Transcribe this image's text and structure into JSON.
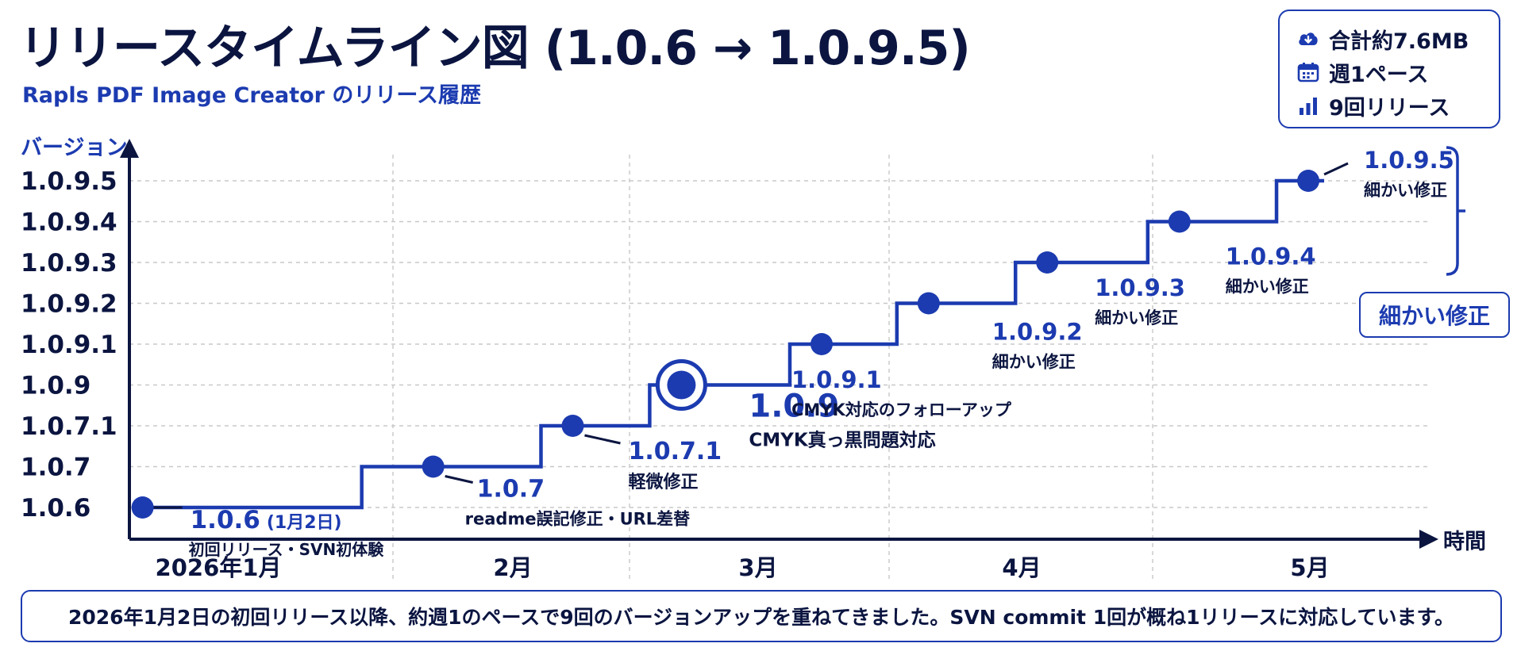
{
  "title": "リリースタイムライン図 (1.0.6 → 1.0.9.5)",
  "subtitle": "Rapls PDF Image Creator のリリース履歴",
  "summary_box": {
    "items": [
      {
        "icon": "cloud-download-icon",
        "label": "合計約7.6MB"
      },
      {
        "icon": "calendar-icon",
        "label": "週1ペース"
      },
      {
        "icon": "bar-chart-icon",
        "label": "9回リリース"
      }
    ]
  },
  "callout_label": "細かい修正",
  "footer_note": "2026年1月2日の初回リリース以降、約週1のペースで9回のバージョンアップを重ねてきました。SVN commit 1回が概ね1リリースに対応しています。",
  "colors": {
    "accent": "#1c3bb0",
    "text": "#0b1540",
    "grid": "#c8c8c8"
  },
  "chart_data": {
    "type": "line",
    "step": true,
    "ylabel": "バージョン",
    "xlabel": "時間",
    "y_categories": [
      "1.0.6",
      "1.0.7",
      "1.0.7.1",
      "1.0.9",
      "1.0.9.1",
      "1.0.9.2",
      "1.0.9.3",
      "1.0.9.4",
      "1.0.9.5"
    ],
    "x_months": [
      "2026年1月",
      "2月",
      "3月",
      "4月",
      "5月"
    ],
    "grid": true,
    "releases": [
      {
        "version": "1.0.6",
        "date_note": "(1月2日)",
        "note": "初回リリース・SVN初体験",
        "x": 0.05
      },
      {
        "version": "1.0.7",
        "note": "readme誤記修正・URL差替",
        "x": 1.17
      },
      {
        "version": "1.0.7.1",
        "note": "軽微修正",
        "x": 1.76
      },
      {
        "version": "1.0.9",
        "note": "CMYK真っ黒問題対応",
        "x": 2.2,
        "highlight": true
      },
      {
        "version": "1.0.9.1",
        "note": "CMYK対応のフォローアップ",
        "x": 2.74
      },
      {
        "version": "1.0.9.2",
        "note": "細かい修正",
        "x": 3.15
      },
      {
        "version": "1.0.9.3",
        "note": "細かい修正",
        "x": 3.6
      },
      {
        "version": "1.0.9.4",
        "note": "細かい修正",
        "x": 4.1
      },
      {
        "version": "1.0.9.5",
        "note": "細かい修正",
        "x": 4.58
      }
    ]
  }
}
